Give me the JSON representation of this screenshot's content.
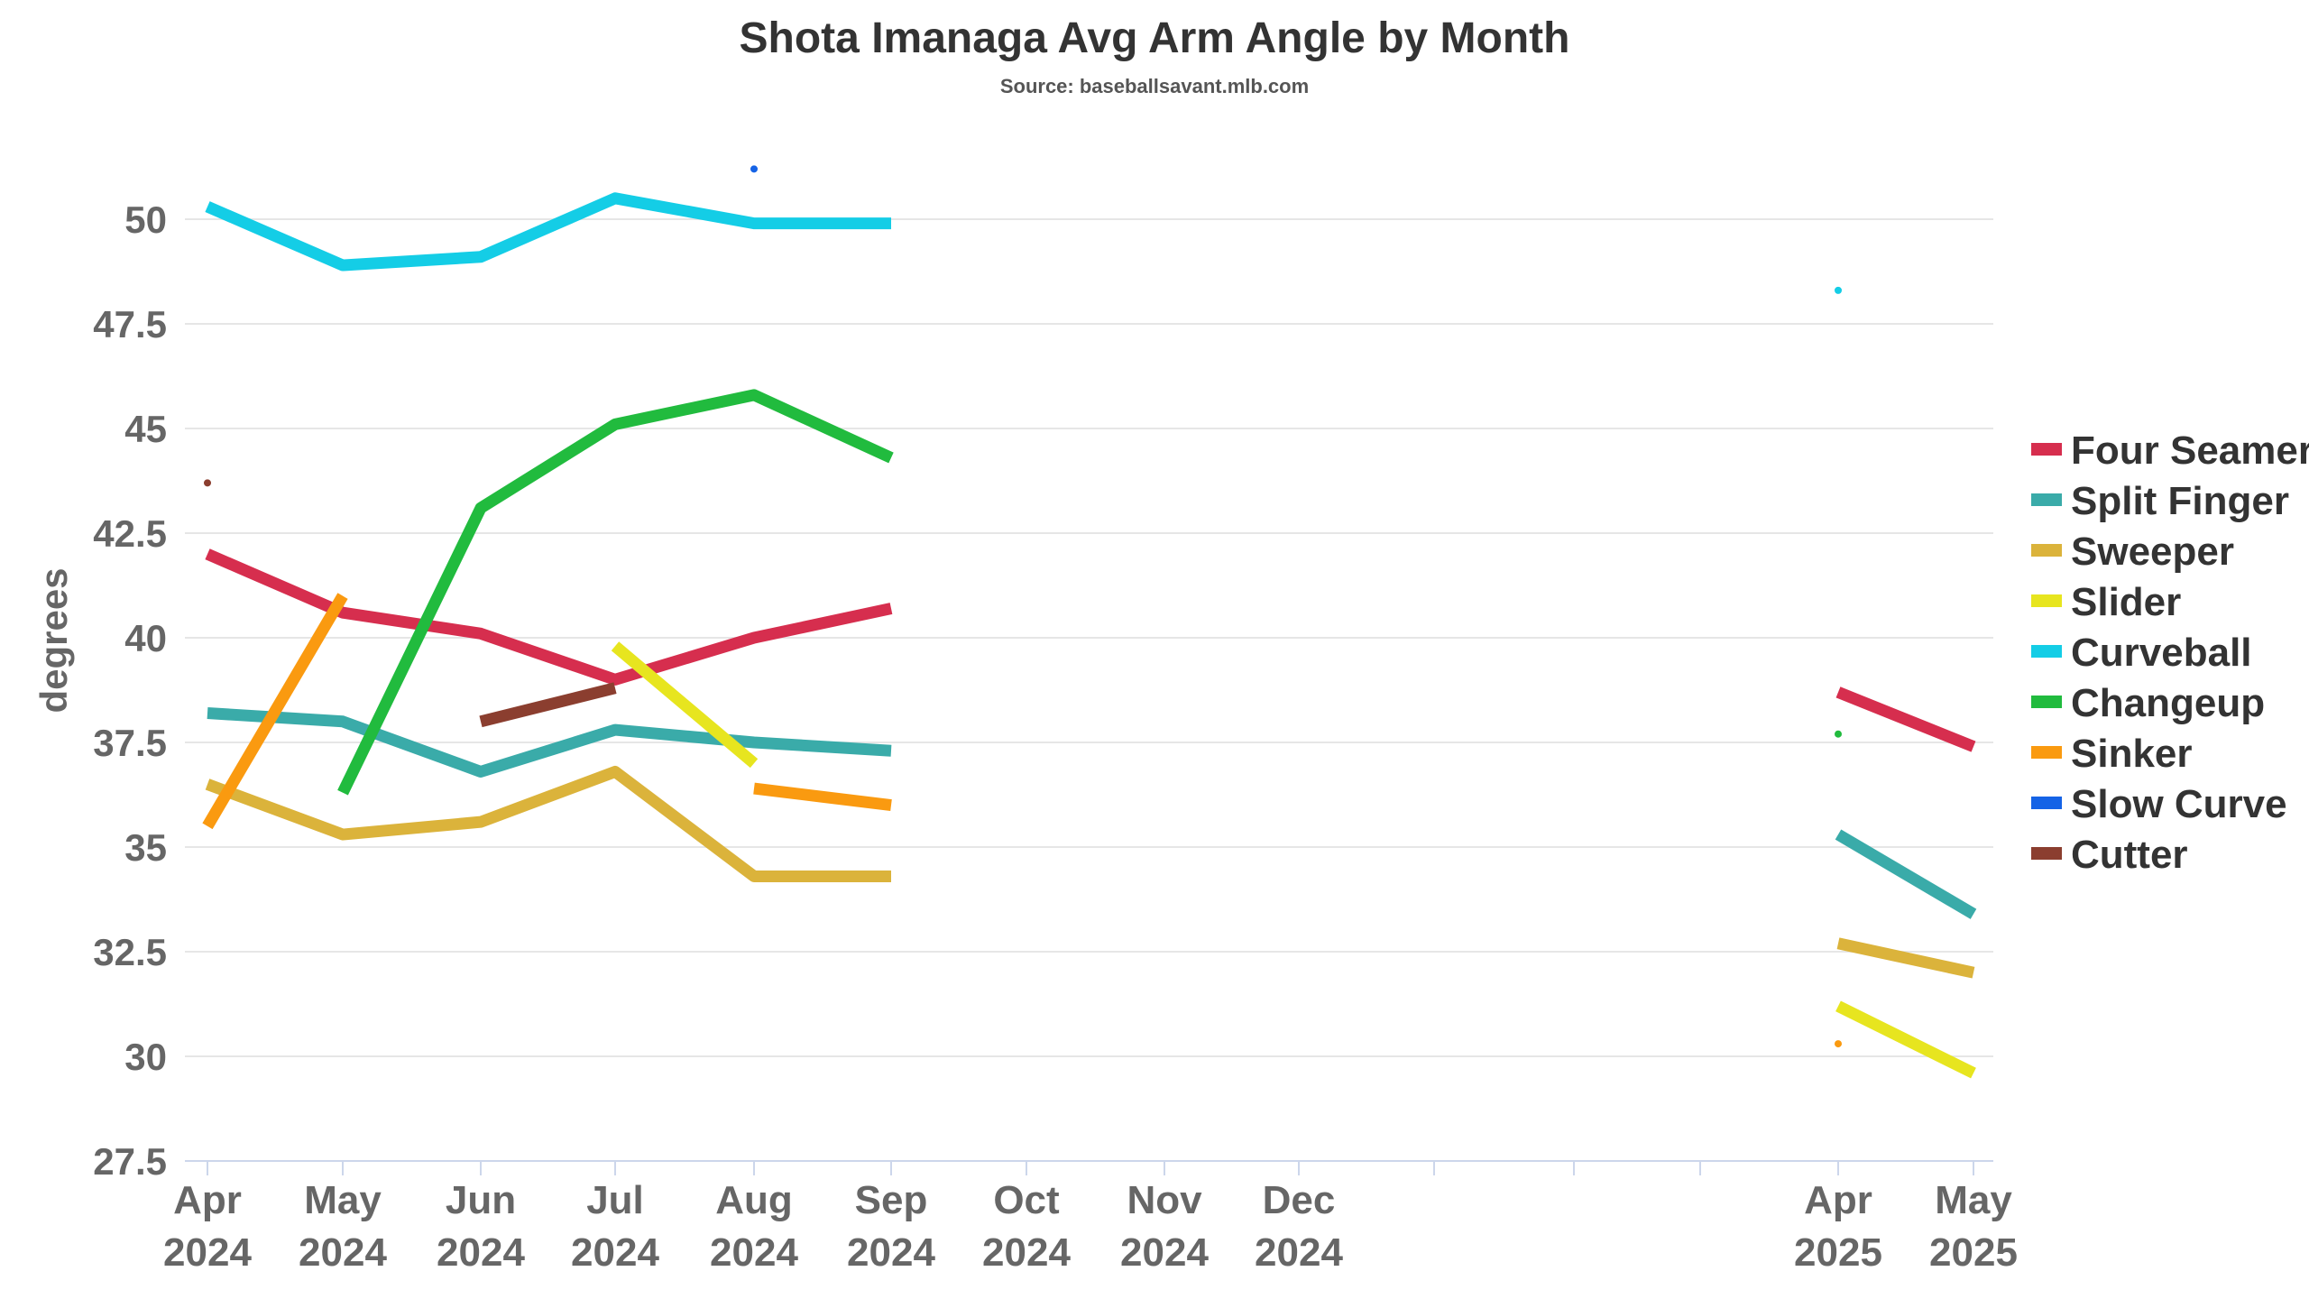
{
  "chart_data": {
    "type": "line",
    "title": "Shota Imanaga Avg Arm Angle by Month",
    "subtitle": "Source: baseballsavant.mlb.com",
    "xlabel": "",
    "ylabel": "degrees",
    "ylim": [
      27.5,
      52
    ],
    "yticks": [
      "27.5",
      "30",
      "32.5",
      "35",
      "37.5",
      "40",
      "42.5",
      "45",
      "47.5",
      "50"
    ],
    "grid": true,
    "legend_position": "right",
    "x_ticks": [
      {
        "m": 0,
        "line1": "Apr",
        "line2": "2024"
      },
      {
        "m": 1,
        "line1": "May",
        "line2": "2024"
      },
      {
        "m": 2,
        "line1": "Jun",
        "line2": "2024"
      },
      {
        "m": 3,
        "line1": "Jul",
        "line2": "2024"
      },
      {
        "m": 4,
        "line1": "Aug",
        "line2": "2024"
      },
      {
        "m": 5,
        "line1": "Sep",
        "line2": "2024"
      },
      {
        "m": 6,
        "line1": "Oct",
        "line2": "2024"
      },
      {
        "m": 7,
        "line1": "Nov",
        "line2": "2024"
      },
      {
        "m": 8,
        "line1": "Dec",
        "line2": "2024"
      },
      {
        "m": 9,
        "line1": "",
        "line2": ""
      },
      {
        "m": 10,
        "line1": "",
        "line2": ""
      },
      {
        "m": 11,
        "line1": "",
        "line2": ""
      },
      {
        "m": 12,
        "line1": "Apr",
        "line2": "2025"
      },
      {
        "m": 13,
        "line1": "May",
        "line2": "2025"
      }
    ],
    "series": [
      {
        "name": "Four Seamer",
        "color": "#d62e4e",
        "points": [
          [
            0,
            42.0
          ],
          [
            1,
            40.6
          ],
          [
            2,
            40.1
          ],
          [
            3,
            39.0
          ],
          [
            4,
            40.0
          ],
          [
            5,
            40.7
          ],
          [
            12,
            38.7
          ],
          [
            13,
            37.4
          ]
        ]
      },
      {
        "name": "Split Finger",
        "color": "#3aaba9",
        "points": [
          [
            0,
            38.2
          ],
          [
            1,
            38.0
          ],
          [
            2,
            36.8
          ],
          [
            3,
            37.8
          ],
          [
            4,
            37.5
          ],
          [
            5,
            37.3
          ],
          [
            12,
            35.3
          ],
          [
            13,
            33.4
          ]
        ]
      },
      {
        "name": "Sweeper",
        "color": "#dbb33b",
        "points": [
          [
            0,
            36.5
          ],
          [
            1,
            35.3
          ],
          [
            2,
            35.6
          ],
          [
            3,
            36.8
          ],
          [
            4,
            34.3
          ],
          [
            5,
            34.3
          ],
          [
            12,
            32.7
          ],
          [
            13,
            32.0
          ]
        ]
      },
      {
        "name": "Slider",
        "color": "#e7e51f",
        "points": [
          [
            3,
            39.8
          ],
          [
            4,
            37.0
          ],
          [
            12,
            31.2
          ],
          [
            13,
            29.6
          ]
        ]
      },
      {
        "name": "Curveball",
        "color": "#14cde6",
        "points": [
          [
            0,
            50.3
          ],
          [
            1,
            48.9
          ],
          [
            2,
            49.1
          ],
          [
            3,
            50.5
          ],
          [
            4,
            49.9
          ],
          [
            5,
            49.9
          ],
          [
            12,
            48.3
          ]
        ]
      },
      {
        "name": "Changeup",
        "color": "#21bb3e",
        "points": [
          [
            1,
            36.3
          ],
          [
            2,
            43.1
          ],
          [
            3,
            45.1
          ],
          [
            4,
            45.8
          ],
          [
            5,
            44.3
          ],
          [
            12,
            37.7
          ]
        ]
      },
      {
        "name": "Sinker",
        "color": "#fa9a10",
        "points": [
          [
            0,
            35.5
          ],
          [
            1,
            41.0
          ],
          [
            4,
            36.4
          ],
          [
            5,
            36.0
          ],
          [
            12,
            30.3
          ]
        ]
      },
      {
        "name": "Slow Curve",
        "color": "#1563e6",
        "points": [
          [
            4,
            51.2
          ]
        ]
      },
      {
        "name": "Cutter",
        "color": "#8b3e2f",
        "points": [
          [
            0,
            43.7
          ],
          [
            2,
            38.0
          ],
          [
            3,
            38.8
          ]
        ]
      }
    ]
  }
}
